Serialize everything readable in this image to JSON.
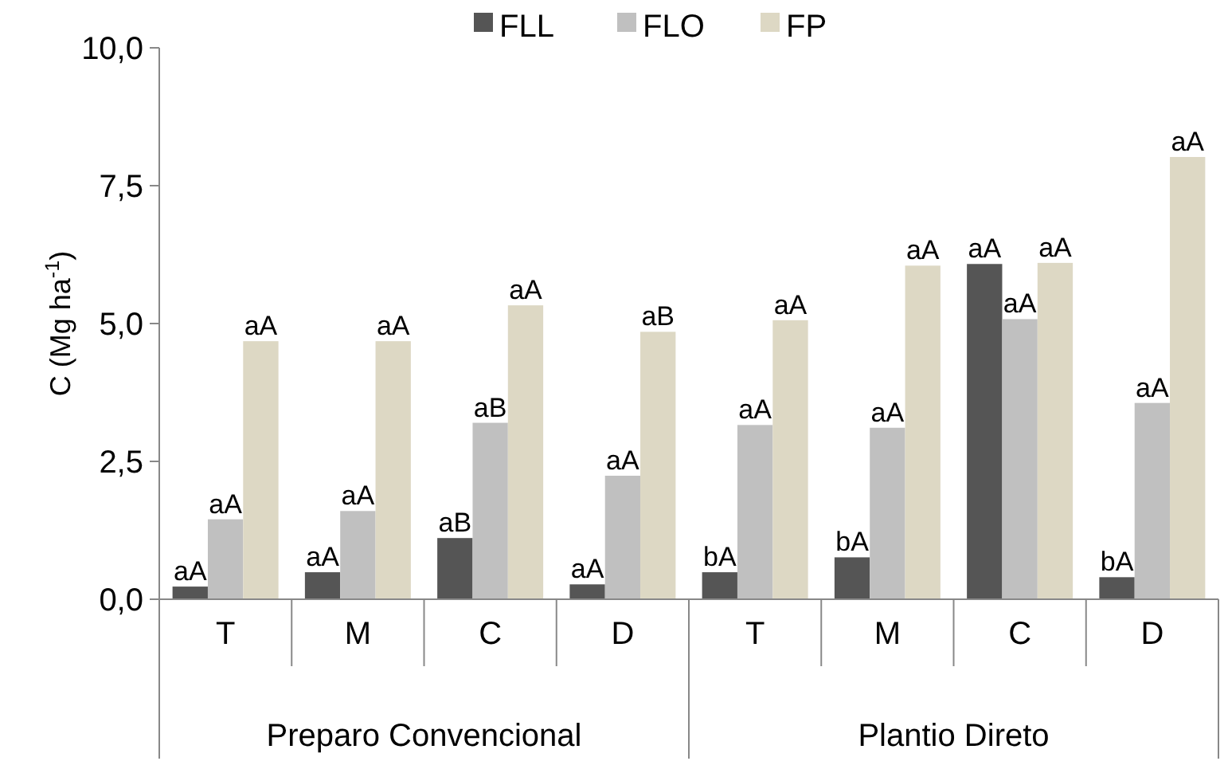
{
  "chart_data": {
    "type": "bar",
    "ylabel": "C (Mg ha$^{-1}$)",
    "categories": [
      "T",
      "M",
      "C",
      "D",
      "T",
      "M",
      "C",
      "D"
    ],
    "series": [
      {
        "name": "FLL",
        "color": "#555555",
        "values": [
          0.23,
          0.49,
          1.11,
          0.27,
          0.49,
          0.76,
          6.08,
          0.4
        ],
        "value_labels": [
          "aA",
          "aA",
          "aB",
          "aA",
          "bA",
          "bA",
          "aA",
          "bA"
        ]
      },
      {
        "name": "FLO",
        "color": "#c0c0c0",
        "values": [
          1.45,
          1.6,
          3.2,
          2.24,
          3.16,
          3.11,
          5.08,
          3.56
        ],
        "value_labels": [
          "aA",
          "aA",
          "aB",
          "aA",
          "aA",
          "aA",
          "aA",
          "aA"
        ]
      },
      {
        "name": "FP",
        "color": "#ddd8c4",
        "values": [
          4.68,
          4.68,
          5.33,
          4.85,
          5.06,
          6.05,
          6.1,
          8.02
        ],
        "value_labels": [
          "aA",
          "aA",
          "aA",
          "aB",
          "aA",
          "aA",
          "aA",
          "aA"
        ]
      }
    ],
    "annotations": [
      "Preparo Convencional",
      "Plantio Direto"
    ],
    "ylim": [
      0,
      10
    ],
    "yticks": [
      {
        "value": 0,
        "label": "0,0"
      },
      {
        "value": 2.5,
        "label": "2,5"
      },
      {
        "value": 5,
        "label": "5,0"
      },
      {
        "value": 7.5,
        "label": "7,5"
      },
      {
        "value": 10,
        "label": "10,0"
      }
    ],
    "grid": false,
    "legend": "top"
  }
}
